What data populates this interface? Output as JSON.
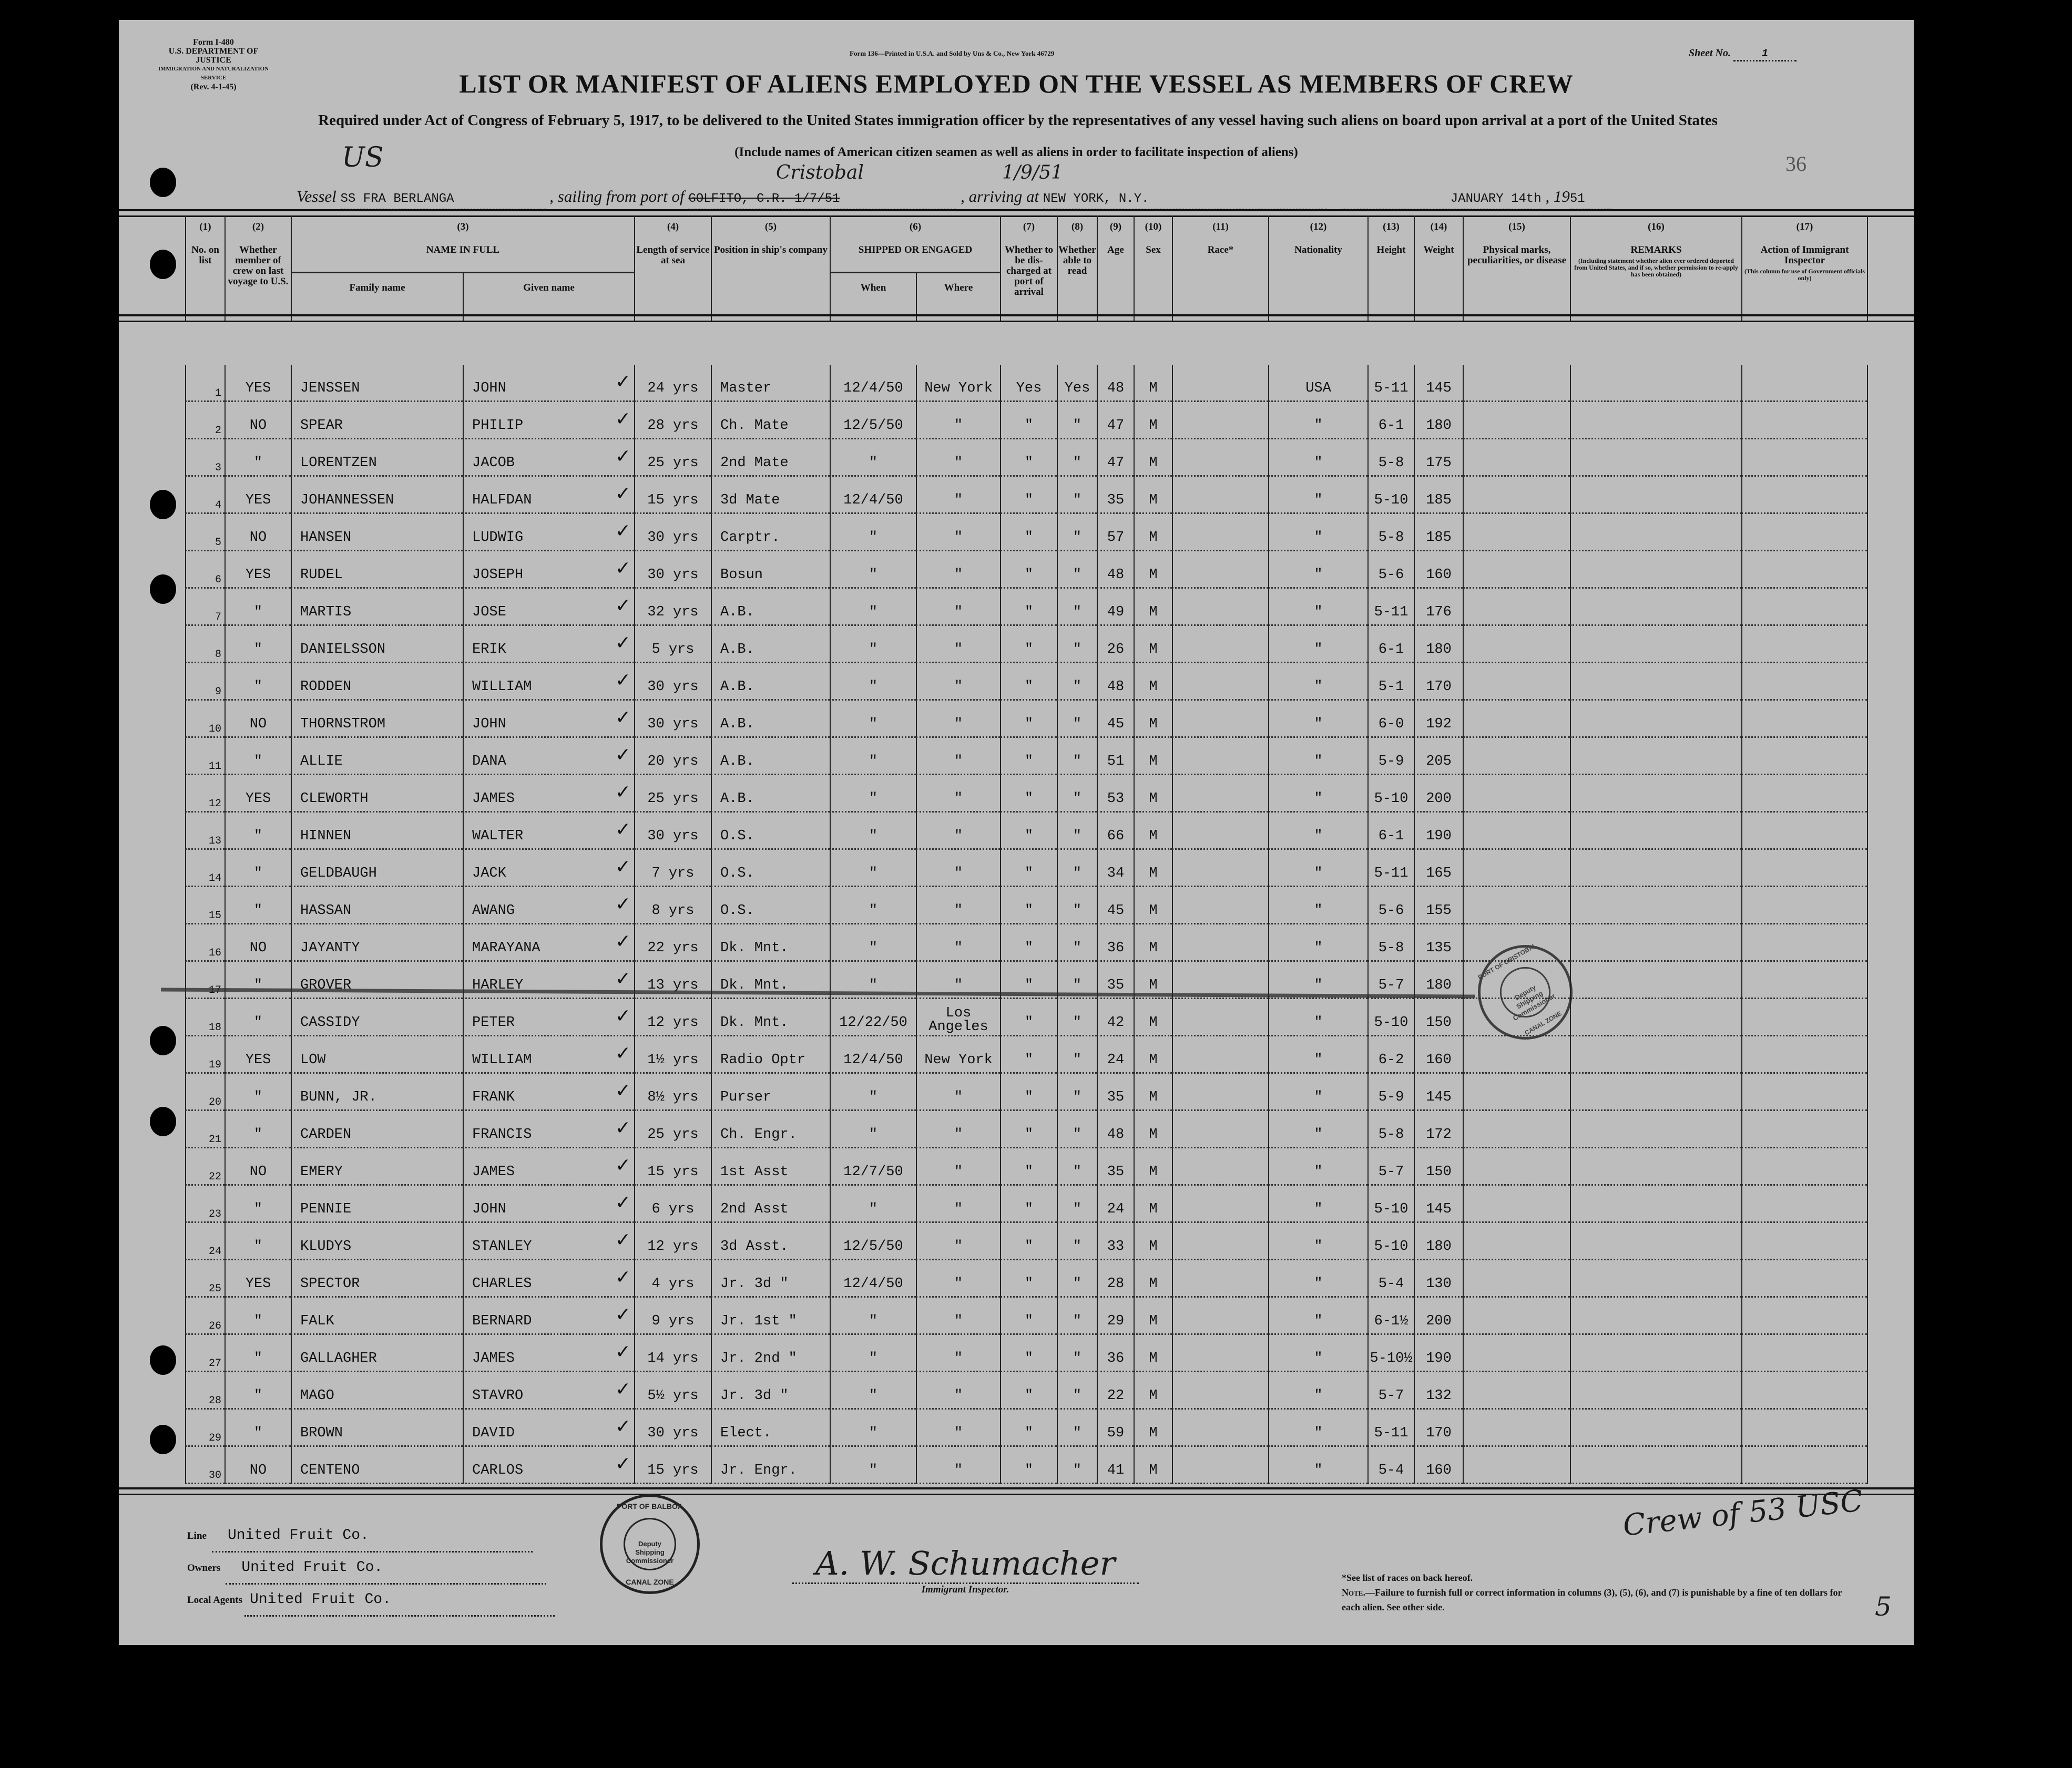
{
  "form_header": {
    "form_no": "Form I-480",
    "department": "U.S. DEPARTMENT OF JUSTICE",
    "service": "IMMIGRATION AND NATURALIZATION SERVICE",
    "revision": "(Rev. 4-1-45)",
    "printer": "Form 136—Printed in U.S.A. and Sold by Uns & Co., New York 46729",
    "sheet_label": "Sheet No.",
    "sheet_no": "1"
  },
  "title": "LIST OR MANIFEST OF ALIENS EMPLOYED ON THE VESSEL AS MEMBERS OF CREW",
  "subtitle": "Required under Act of Congress of February 5, 1917, to be delivered to the United States immigration officer by the representatives of any vessel having such aliens on board upon arrival at a port of the United States",
  "instruction": "(Include names of American citizen seamen as well as aliens in order to facilitate inspection of aliens)",
  "voyage": {
    "vessel_label": "Vessel",
    "vessel": "SS FRA BERLANGA",
    "sailing_label": ", sailing from port of",
    "port": "GOLFITO, C.R. 1/7/51",
    "arriving_label": ", arriving at",
    "arriving": "NEW YORK, N.Y.",
    "date": "JANUARY 14th",
    "year_prefix": ", 19",
    "year": "51"
  },
  "handwritten": {
    "flag": "US",
    "port_correction": "Cristobal",
    "date_correction": "1/9/51",
    "page_count": "36",
    "crew_note": "Crew of 53 USC",
    "corner_mark": "5"
  },
  "columns": [
    {
      "num": "(1)",
      "label": "No. on list"
    },
    {
      "num": "(2)",
      "label": "Whether member of crew on last voyage to U.S."
    },
    {
      "num": "(3)",
      "label": "NAME IN FULL",
      "sub": [
        "Family name",
        "Given name"
      ]
    },
    {
      "num": "(4)",
      "label": "Length of service at sea"
    },
    {
      "num": "(5)",
      "label": "Position in ship's company"
    },
    {
      "num": "(6)",
      "label": "SHIPPED OR ENGAGED",
      "sub": [
        "When",
        "Where"
      ]
    },
    {
      "num": "(7)",
      "label": "Whether to be dis-charged at port of arrival"
    },
    {
      "num": "(8)",
      "label": "Whether able to read"
    },
    {
      "num": "(9)",
      "label": "Age"
    },
    {
      "num": "(10)",
      "label": "Sex"
    },
    {
      "num": "(11)",
      "label": "Race*"
    },
    {
      "num": "(12)",
      "label": "Nationality"
    },
    {
      "num": "(13)",
      "label": "Height"
    },
    {
      "num": "(14)",
      "label": "Weight"
    },
    {
      "num": "(15)",
      "label": "Physical marks, peculiarities, or disease"
    },
    {
      "num": "(16)",
      "label": "REMARKS",
      "note": "(Including statement whether alien ever ordered deported from United States, and if so, whether permission to re-apply has been obtained)"
    },
    {
      "num": "(17)",
      "label": "Action of Immigrant Inspector",
      "note": "(This column for use of Government officials only)"
    }
  ],
  "rows": [
    [
      "1",
      "YES",
      "JENSSEN",
      "JOHN",
      "24 yrs",
      "Master",
      "12/4/50",
      "New York",
      "Yes",
      "Yes",
      "48",
      "M",
      "",
      "USA",
      "5-11",
      "145"
    ],
    [
      "2",
      "NO",
      "SPEAR",
      "PHILIP",
      "28 yrs",
      "Ch. Mate",
      "12/5/50",
      "\"",
      "\"",
      "\"",
      "47",
      "M",
      "",
      "\"",
      "6-1",
      "180"
    ],
    [
      "3",
      "\"",
      "LORENTZEN",
      "JACOB",
      "25 yrs",
      "2nd Mate",
      "\"",
      "\"",
      "\"",
      "\"",
      "47",
      "M",
      "",
      "\"",
      "5-8",
      "175"
    ],
    [
      "4",
      "YES",
      "JOHANNESSEN",
      "HALFDAN",
      "15 yrs",
      "3d Mate",
      "12/4/50",
      "\"",
      "\"",
      "\"",
      "35",
      "M",
      "",
      "\"",
      "5-10",
      "185"
    ],
    [
      "5",
      "NO",
      "HANSEN",
      "LUDWIG",
      "30 yrs",
      "Carptr.",
      "\"",
      "\"",
      "\"",
      "\"",
      "57",
      "M",
      "",
      "\"",
      "5-8",
      "185"
    ],
    [
      "6",
      "YES",
      "RUDEL",
      "JOSEPH",
      "30 yrs",
      "Bosun",
      "\"",
      "\"",
      "\"",
      "\"",
      "48",
      "M",
      "",
      "\"",
      "5-6",
      "160"
    ],
    [
      "7",
      "\"",
      "MARTIS",
      "JOSE",
      "32 yrs",
      "A.B.",
      "\"",
      "\"",
      "\"",
      "\"",
      "49",
      "M",
      "",
      "\"",
      "5-11",
      "176"
    ],
    [
      "8",
      "\"",
      "DANIELSSON",
      "ERIK",
      "5 yrs",
      "A.B.",
      "\"",
      "\"",
      "\"",
      "\"",
      "26",
      "M",
      "",
      "\"",
      "6-1",
      "180"
    ],
    [
      "9",
      "\"",
      "RODDEN",
      "WILLIAM",
      "30 yrs",
      "A.B.",
      "\"",
      "\"",
      "\"",
      "\"",
      "48",
      "M",
      "",
      "\"",
      "5-1",
      "170"
    ],
    [
      "10",
      "NO",
      "THORNSTROM",
      "JOHN",
      "30 yrs",
      "A.B.",
      "\"",
      "\"",
      "\"",
      "\"",
      "45",
      "M",
      "",
      "\"",
      "6-0",
      "192"
    ],
    [
      "11",
      "\"",
      "ALLIE",
      "DANA",
      "20 yrs",
      "A.B.",
      "\"",
      "\"",
      "\"",
      "\"",
      "51",
      "M",
      "",
      "\"",
      "5-9",
      "205"
    ],
    [
      "12",
      "YES",
      "CLEWORTH",
      "JAMES",
      "25 yrs",
      "A.B.",
      "\"",
      "\"",
      "\"",
      "\"",
      "53",
      "M",
      "",
      "\"",
      "5-10",
      "200"
    ],
    [
      "13",
      "\"",
      "HINNEN",
      "WALTER",
      "30 yrs",
      "O.S.",
      "\"",
      "\"",
      "\"",
      "\"",
      "66",
      "M",
      "",
      "\"",
      "6-1",
      "190"
    ],
    [
      "14",
      "\"",
      "GELDBAUGH",
      "JACK",
      "7 yrs",
      "O.S.",
      "\"",
      "\"",
      "\"",
      "\"",
      "34",
      "M",
      "",
      "\"",
      "5-11",
      "165"
    ],
    [
      "15",
      "\"",
      "HASSAN",
      "AWANG",
      "8 yrs",
      "O.S.",
      "\"",
      "\"",
      "\"",
      "\"",
      "45",
      "M",
      "",
      "\"",
      "5-6",
      "155"
    ],
    [
      "16",
      "NO",
      "JAYANTY",
      "MARAYANA",
      "22 yrs",
      "Dk. Mnt.",
      "\"",
      "\"",
      "\"",
      "\"",
      "36",
      "M",
      "",
      "\"",
      "5-8",
      "135"
    ],
    [
      "17",
      "\"",
      "GROVER",
      "HARLEY",
      "13 yrs",
      "Dk. Mnt.",
      "\"",
      "\"",
      "\"",
      "\"",
      "35",
      "M",
      "",
      "\"",
      "5-7",
      "180"
    ],
    [
      "18",
      "\"",
      "CASSIDY",
      "PETER",
      "12 yrs",
      "Dk. Mnt.",
      "12/22/50",
      "Los Angeles",
      "\"",
      "\"",
      "42",
      "M",
      "",
      "\"",
      "5-10",
      "150"
    ],
    [
      "19",
      "YES",
      "LOW",
      "WILLIAM",
      "1½ yrs",
      "Radio Optr",
      "12/4/50",
      "New York",
      "\"",
      "\"",
      "24",
      "M",
      "",
      "\"",
      "6-2",
      "160"
    ],
    [
      "20",
      "\"",
      "BUNN, JR.",
      "FRANK",
      "8½ yrs",
      "Purser",
      "\"",
      "\"",
      "\"",
      "\"",
      "35",
      "M",
      "",
      "\"",
      "5-9",
      "145"
    ],
    [
      "21",
      "\"",
      "CARDEN",
      "FRANCIS",
      "25 yrs",
      "Ch. Engr.",
      "\"",
      "\"",
      "\"",
      "\"",
      "48",
      "M",
      "",
      "\"",
      "5-8",
      "172"
    ],
    [
      "22",
      "NO",
      "EMERY",
      "JAMES",
      "15 yrs",
      "1st Asst",
      "12/7/50",
      "\"",
      "\"",
      "\"",
      "35",
      "M",
      "",
      "\"",
      "5-7",
      "150"
    ],
    [
      "23",
      "\"",
      "PENNIE",
      "JOHN",
      "6 yrs",
      "2nd Asst",
      "\"",
      "\"",
      "\"",
      "\"",
      "24",
      "M",
      "",
      "\"",
      "5-10",
      "145"
    ],
    [
      "24",
      "\"",
      "KLUDYS",
      "STANLEY",
      "12 yrs",
      "3d Asst.",
      "12/5/50",
      "\"",
      "\"",
      "\"",
      "33",
      "M",
      "",
      "\"",
      "5-10",
      "180"
    ],
    [
      "25",
      "YES",
      "SPECTOR",
      "CHARLES",
      "4 yrs",
      "Jr. 3d \"",
      "12/4/50",
      "\"",
      "\"",
      "\"",
      "28",
      "M",
      "",
      "\"",
      "5-4",
      "130"
    ],
    [
      "26",
      "\"",
      "FALK",
      "BERNARD",
      "9 yrs",
      "Jr. 1st \"",
      "\"",
      "\"",
      "\"",
      "\"",
      "29",
      "M",
      "",
      "\"",
      "6-1½",
      "200"
    ],
    [
      "27",
      "\"",
      "GALLAGHER",
      "JAMES",
      "14 yrs",
      "Jr. 2nd \"",
      "\"",
      "\"",
      "\"",
      "\"",
      "36",
      "M",
      "",
      "\"",
      "5-10½",
      "190"
    ],
    [
      "28",
      "\"",
      "MAGO",
      "STAVRO",
      "5½ yrs",
      "Jr. 3d \"",
      "\"",
      "\"",
      "\"",
      "\"",
      "22",
      "M",
      "",
      "\"",
      "5-7",
      "132"
    ],
    [
      "29",
      "\"",
      "BROWN",
      "DAVID",
      "30 yrs",
      "Elect.",
      "\"",
      "\"",
      "\"",
      "\"",
      "59",
      "M",
      "",
      "\"",
      "5-11",
      "170"
    ],
    [
      "30",
      "NO",
      "CENTENO",
      "CARLOS",
      "15 yrs",
      "Jr. Engr.",
      "\"",
      "\"",
      "\"",
      "\"",
      "41",
      "M",
      "",
      "\"",
      "5-4",
      "160"
    ]
  ],
  "footer": {
    "line_label": "Line",
    "line": "United Fruit Co.",
    "owners_label": "Owners",
    "owners": "United Fruit Co.",
    "agents_label": "Local Agents",
    "agents": "United Fruit Co.",
    "signature": "A. W. Schumacher",
    "signature_label": "Immigrant Inspector.",
    "races_note": "*See list of races on back hereof.",
    "note_label": "Note.",
    "note": "—Failure to furnish full or correct information in columns (3), (5), (6), and (7) is punishable by a fine of ten dollars for each alien. See other side."
  },
  "stamps": {
    "balboa": {
      "outer": "PORT OF BALBOA",
      "inner": "Deputy Shipping Commissioner",
      "bottom": "CANAL ZONE"
    },
    "cristobal": {
      "outer": "PORT OF CRISTOBAL",
      "inner": "Deputy Shipping Commissioner",
      "bottom": "CANAL ZONE"
    }
  }
}
